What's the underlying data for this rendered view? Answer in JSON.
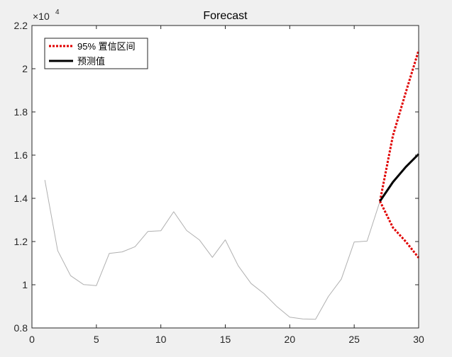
{
  "chart_data": {
    "type": "line",
    "title": "Forecast",
    "xlabel": "",
    "ylabel": "",
    "xlim": [
      0,
      30
    ],
    "ylim": [
      8000,
      22000
    ],
    "x_ticks": [
      0,
      5,
      10,
      15,
      20,
      25,
      30
    ],
    "y_ticks": [
      8000,
      10000,
      12000,
      14000,
      16000,
      18000,
      20000,
      22000
    ],
    "y_tick_labels": [
      "0.8",
      "1",
      "1.2",
      "1.4",
      "1.6",
      "1.8",
      "2",
      "2.2"
    ],
    "y_exponent": "4",
    "y_exponent_prefix": "×10",
    "grid": false,
    "legend_position": "top-left",
    "series": [
      {
        "key": "history",
        "color": "#b0b0b0",
        "style": "solid",
        "x": [
          1,
          2,
          3,
          4,
          5,
          6,
          7,
          8,
          9,
          10,
          11,
          12,
          13,
          14,
          15,
          16,
          17,
          18,
          19,
          20,
          21,
          22,
          23,
          24,
          25,
          26,
          27
        ],
        "y": [
          14850,
          11580,
          10420,
          10010,
          9960,
          11450,
          11520,
          11760,
          12470,
          12500,
          13380,
          12510,
          12070,
          11270,
          12080,
          10880,
          10060,
          9590,
          8990,
          8500,
          8420,
          8400,
          9460,
          10260,
          11980,
          12020,
          13870
        ]
      },
      {
        "key": "upper",
        "name": "95% 置信区间",
        "color": "#e00000",
        "style": "dashed",
        "x": [
          27,
          28,
          29,
          30
        ],
        "y": [
          13870,
          16900,
          18900,
          20850
        ]
      },
      {
        "key": "lower",
        "color": "#e00000",
        "style": "dashed",
        "x": [
          27,
          28,
          29,
          30
        ],
        "y": [
          13870,
          12650,
          12000,
          11250
        ]
      },
      {
        "key": "forecast",
        "name": "预测值",
        "color": "#000000",
        "style": "solid",
        "x": [
          27,
          28,
          29,
          30
        ],
        "y": [
          13870,
          14750,
          15450,
          16050
        ]
      }
    ]
  }
}
